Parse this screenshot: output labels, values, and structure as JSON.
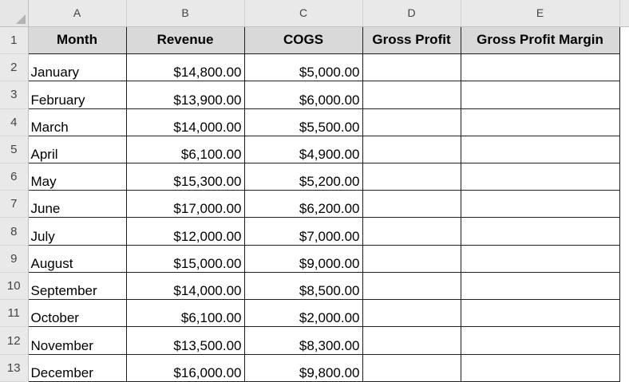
{
  "columns": [
    "A",
    "B",
    "C",
    "D",
    "E"
  ],
  "header_row": {
    "row_number": "1",
    "cells": [
      "Month",
      "Revenue",
      "COGS",
      "Gross Profit",
      "Gross Profit Margin"
    ]
  },
  "rows": [
    {
      "row_number": "2",
      "month": "January",
      "revenue": "$14,800.00",
      "cogs": "$5,000.00",
      "gross_profit": "",
      "gross_profit_margin": ""
    },
    {
      "row_number": "3",
      "month": "February",
      "revenue": "$13,900.00",
      "cogs": "$6,000.00",
      "gross_profit": "",
      "gross_profit_margin": ""
    },
    {
      "row_number": "4",
      "month": "March",
      "revenue": "$14,000.00",
      "cogs": "$5,500.00",
      "gross_profit": "",
      "gross_profit_margin": ""
    },
    {
      "row_number": "5",
      "month": "April",
      "revenue": "$6,100.00",
      "cogs": "$4,900.00",
      "gross_profit": "",
      "gross_profit_margin": ""
    },
    {
      "row_number": "6",
      "month": "May",
      "revenue": "$15,300.00",
      "cogs": "$5,200.00",
      "gross_profit": "",
      "gross_profit_margin": ""
    },
    {
      "row_number": "7",
      "month": "June",
      "revenue": "$17,000.00",
      "cogs": "$6,200.00",
      "gross_profit": "",
      "gross_profit_margin": ""
    },
    {
      "row_number": "8",
      "month": "July",
      "revenue": "$12,000.00",
      "cogs": "$7,000.00",
      "gross_profit": "",
      "gross_profit_margin": ""
    },
    {
      "row_number": "9",
      "month": "August",
      "revenue": "$15,000.00",
      "cogs": "$9,000.00",
      "gross_profit": "",
      "gross_profit_margin": ""
    },
    {
      "row_number": "10",
      "month": "September",
      "revenue": "$14,000.00",
      "cogs": "$8,500.00",
      "gross_profit": "",
      "gross_profit_margin": ""
    },
    {
      "row_number": "11",
      "month": "October",
      "revenue": "$6,100.00",
      "cogs": "$2,000.00",
      "gross_profit": "",
      "gross_profit_margin": ""
    },
    {
      "row_number": "12",
      "month": "November",
      "revenue": "$13,500.00",
      "cogs": "$8,300.00",
      "gross_profit": "",
      "gross_profit_margin": ""
    },
    {
      "row_number": "13",
      "month": "December",
      "revenue": "$16,000.00",
      "cogs": "$9,800.00",
      "gross_profit": "",
      "gross_profit_margin": ""
    }
  ],
  "colors": {
    "header_fill": "#d9d9d9",
    "gridlines": "#1f1f1f",
    "headings_background": "#e9e9e9"
  }
}
